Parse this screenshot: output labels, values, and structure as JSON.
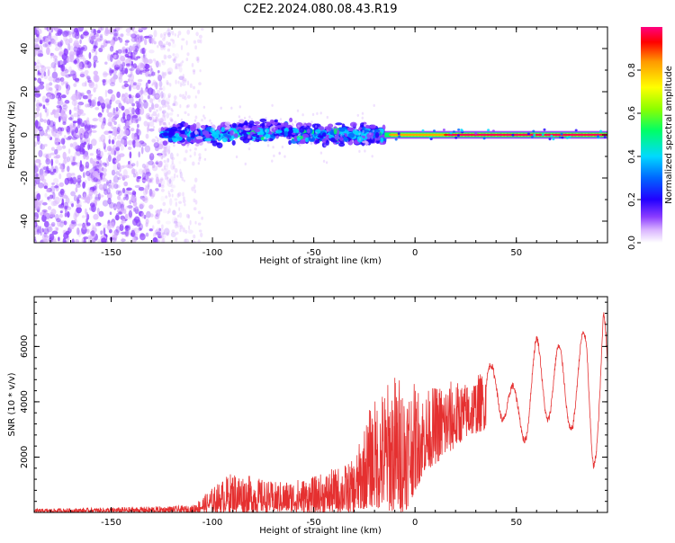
{
  "title": "C2E2.2024.080.08.43.R19",
  "chart_data": [
    {
      "type": "heatmap",
      "name": "spectrogram",
      "xlabel": "Height of straight line (km)",
      "ylabel": "Frequency (Hz)",
      "xlim": [
        -188,
        95
      ],
      "ylim": [
        -50,
        50
      ],
      "xticks": [
        -150,
        -100,
        -50,
        0,
        50
      ],
      "yticks": [
        40,
        20,
        0,
        -20,
        -40
      ],
      "description_series": [
        {
          "name": "noise region",
          "x_range": [
            -188,
            -110
          ],
          "freq_range": [
            -50,
            50
          ],
          "amplitude": 0.1
        },
        {
          "name": "broadband signal",
          "x_range": [
            -125,
            -15
          ],
          "freq_center": 0,
          "freq_halfwidth": 6,
          "amplitude": 0.4
        },
        {
          "name": "narrow tone",
          "x_range": [
            -15,
            95
          ],
          "freq_center": 0,
          "freq_halfwidth": 1.5,
          "amplitude": 0.9
        }
      ]
    },
    {
      "type": "colorbar",
      "name": "amplitude-scale",
      "label": "Normalized spectral amplitude",
      "range": [
        0,
        1
      ],
      "ticks": [
        "0.0",
        "0.2",
        "0.4",
        "0.6",
        "0.8"
      ],
      "colors": [
        "#ffffff",
        "#d9b3ff",
        "#8b3dff",
        "#2200ff",
        "#0066ff",
        "#00d9ff",
        "#00ff66",
        "#8cff00",
        "#ffff00",
        "#ff9900",
        "#ff0000",
        "#ff0080"
      ]
    },
    {
      "type": "line",
      "name": "snr",
      "xlabel": "Height of straight line (km)",
      "ylabel": "SNR (10 * v/v)",
      "xlim": [
        -188,
        95
      ],
      "ylim": [
        0,
        7800
      ],
      "xticks": [
        -150,
        -100,
        -50,
        0,
        50
      ],
      "yticks": [
        2000,
        4000,
        6000
      ],
      "color": "#e53030",
      "series_envelope": [
        {
          "x": -188,
          "low": 0,
          "high": 130
        },
        {
          "x": -150,
          "low": 0,
          "high": 180
        },
        {
          "x": -110,
          "low": 0,
          "high": 250
        },
        {
          "x": -100,
          "low": 0,
          "high": 900
        },
        {
          "x": -90,
          "low": 0,
          "high": 1500
        },
        {
          "x": -70,
          "low": 0,
          "high": 1100
        },
        {
          "x": -50,
          "low": 0,
          "high": 1300
        },
        {
          "x": -30,
          "low": 0,
          "high": 1900
        },
        {
          "x": -22,
          "low": 200,
          "high": 3900
        },
        {
          "x": -10,
          "low": 0,
          "high": 5100
        },
        {
          "x": -5,
          "low": 0,
          "high": 4900
        },
        {
          "x": 5,
          "low": 1500,
          "high": 4400
        },
        {
          "x": 15,
          "low": 2000,
          "high": 4800
        },
        {
          "x": 25,
          "low": 2700,
          "high": 4700
        },
        {
          "x": 35,
          "low": 3000,
          "high": 5200
        },
        {
          "x": 40,
          "low": 3800,
          "high": 5500
        },
        {
          "x": 50,
          "low": 2300,
          "high": 4400
        },
        {
          "x": 60,
          "low": 3000,
          "high": 6300
        },
        {
          "x": 70,
          "low": 3600,
          "high": 6200
        },
        {
          "x": 75,
          "low": 2900,
          "high": 5300
        },
        {
          "x": 85,
          "low": 3300,
          "high": 6800
        },
        {
          "x": 88,
          "low": 1600,
          "high": 4000
        },
        {
          "x": 93,
          "low": 3000,
          "high": 7800
        },
        {
          "x": 95,
          "low": 4800,
          "high": 5500
        }
      ]
    }
  ]
}
